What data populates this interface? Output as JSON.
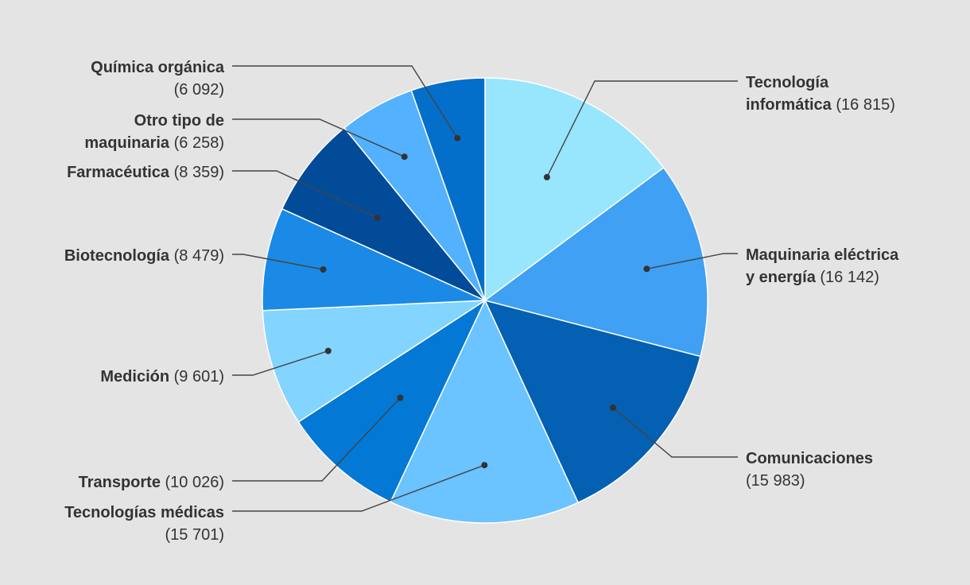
{
  "chart_data": {
    "type": "pie",
    "title": "",
    "slices": [
      {
        "name": "Tecnología informática",
        "value": 16815,
        "value_label": "(16 815)",
        "color": "#98e6fd"
      },
      {
        "name": "Maquinaria eléctrica y energía",
        "value": 16142,
        "value_label": "(16 142)",
        "color": "#3fa0f4"
      },
      {
        "name": "Comunicaciones",
        "value": 15983,
        "value_label": "(15 983)",
        "color": "#0460b2"
      },
      {
        "name": "Tecnologías médicas",
        "value": 15701,
        "value_label": "(15 701)",
        "color": "#6bc3ff"
      },
      {
        "name": "Transporte",
        "value": 10026,
        "value_label": "(10 026)",
        "color": "#0378d4"
      },
      {
        "name": "Medición",
        "value": 9601,
        "value_label": "(9 601)",
        "color": "#83d4ff"
      },
      {
        "name": "Biotecnología",
        "value": 8479,
        "value_label": "(8 479)",
        "color": "#1a8ae6"
      },
      {
        "name": "Farmacéutica",
        "value": 8359,
        "value_label": "(8 359)",
        "color": "#024b99"
      },
      {
        "name": "Otro tipo de maquinaria",
        "value": 6258,
        "value_label": "(6 258)",
        "color": "#53b1fe"
      },
      {
        "name": "Química orgánica",
        "value": 6092,
        "value_label": "(6 092)",
        "color": "#036fcb"
      }
    ],
    "legend": "none"
  }
}
